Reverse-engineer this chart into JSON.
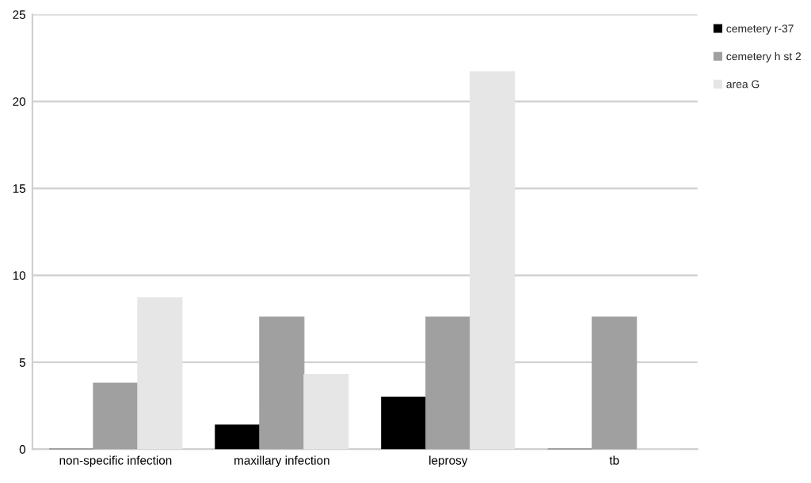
{
  "chart_data": {
    "type": "bar",
    "categories": [
      "non-specific infection",
      "maxillary infection",
      "leprosy",
      "tb"
    ],
    "series": [
      {
        "name": "cemetery r-37",
        "color": "#000000",
        "values": [
          0,
          1.4,
          3.0,
          0
        ]
      },
      {
        "name": "cemetery h st 2",
        "color": "#a0a0a0",
        "values": [
          3.8,
          7.6,
          7.6,
          7.6
        ]
      },
      {
        "name": "area G",
        "color": "#e6e6e6",
        "values": [
          8.7,
          4.3,
          21.7,
          0
        ]
      }
    ],
    "ylim": [
      0,
      25
    ],
    "yticks": [
      0,
      5,
      10,
      15,
      20,
      25
    ],
    "grid": "y",
    "legend": "top right"
  }
}
